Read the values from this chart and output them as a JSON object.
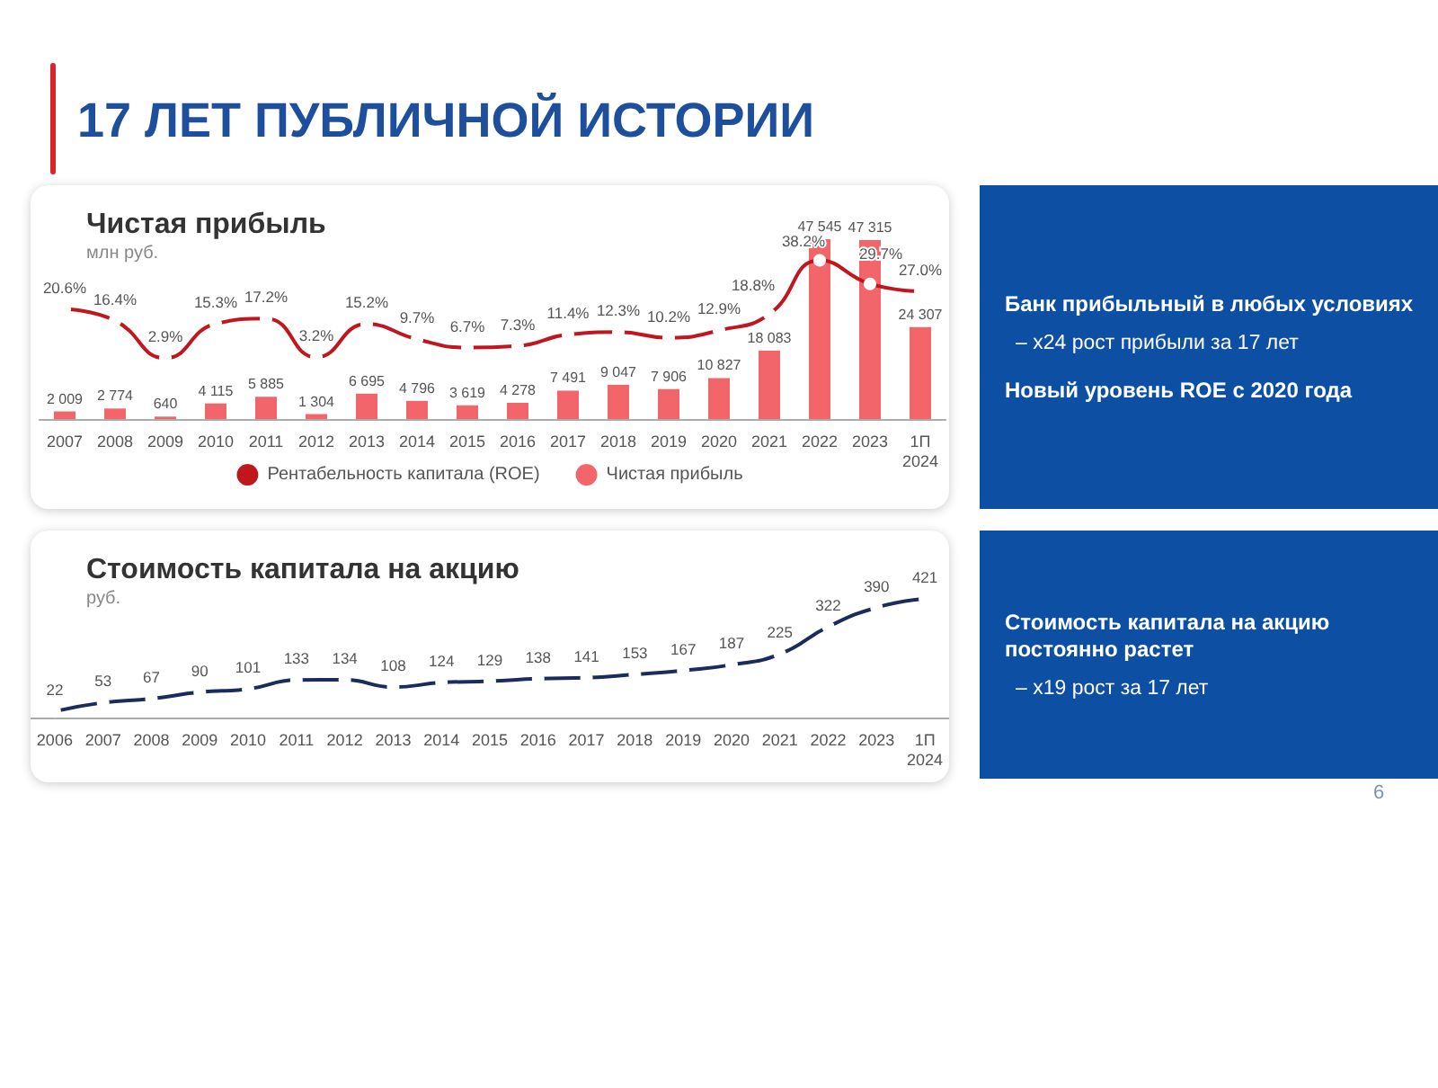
{
  "chart_data": [
    {
      "type": "other",
      "title": "17 ЛЕТ ПУБЛИЧНОЙ ИСТОРИИ",
      "annotations": [
        "6"
      ]
    },
    {
      "type": "bar",
      "title": "Чистая прибыль",
      "subtitle": "млн руб.",
      "categories": [
        "2007",
        "2008",
        "2009",
        "2010",
        "2011",
        "2012",
        "2013",
        "2014",
        "2015",
        "2016",
        "2017",
        "2018",
        "2019",
        "2020",
        "2021",
        "2022",
        "2023",
        "1П\n2024"
      ],
      "series": [
        {
          "name": "Рентабельность капитала (ROE)",
          "type": "line",
          "axis": "y2",
          "color": "#c0161e",
          "values": [
            20.6,
            16.4,
            2.9,
            15.3,
            17.2,
            3.2,
            15.2,
            9.7,
            6.7,
            7.3,
            11.4,
            12.3,
            10.2,
            12.9,
            18.8,
            38.2,
            29.7,
            27.0
          ],
          "value_labels": [
            "20.6%",
            "16.4%",
            "2.9%",
            "15.3%",
            "17.2%",
            "3.2%",
            "15.2%",
            "9.7%",
            "6.7%",
            "7.3%",
            "11.4%",
            "12.3%",
            "10.2%",
            "12.9%",
            "18.8%",
            "38.2%",
            "29.7%",
            "27.0%"
          ]
        },
        {
          "name": "Чистая прибыль",
          "type": "bar",
          "color": "#f2666b",
          "values": [
            2009,
            2774,
            640,
            4115,
            5885,
            1304,
            6695,
            4796,
            3619,
            4278,
            7491,
            9047,
            7906,
            10827,
            18083,
            47545,
            47315,
            24307
          ],
          "value_labels": [
            "2 009",
            "2 774",
            "640",
            "4 115",
            "5 885",
            "1 304",
            "6 695",
            "4 796",
            "3 619",
            "4 278",
            "7 491",
            "9 047",
            "7 906",
            "10 827",
            "18 083",
            "47 545",
            "47 315",
            "24 307"
          ]
        }
      ],
      "marker": "circle",
      "legend": "bottom",
      "tick_labels": "x"
    },
    {
      "type": "other",
      "title": "Банк прибыльный в любых условиях",
      "subtitle": "– x24 рост прибыли за 17 лет",
      "annotations": [
        "Новый уровень ROE с 2020 года"
      ]
    },
    {
      "type": "line",
      "title": "Стоимость капитала на акцию",
      "subtitle": "руб.",
      "categories": [
        "2006",
        "2007",
        "2008",
        "2009",
        "2010",
        "2011",
        "2012",
        "2013",
        "2014",
        "2015",
        "2016",
        "2017",
        "2018",
        "2019",
        "2020",
        "2021",
        "2022",
        "2023",
        "1П\n2024"
      ],
      "values": [
        22,
        53,
        67,
        90,
        101,
        133,
        134,
        108,
        124,
        129,
        138,
        141,
        153,
        167,
        187,
        225,
        322,
        390,
        421
      ],
      "color": "#1b2b5c",
      "data_labels": true,
      "marker": "circle",
      "tick_labels": "x"
    },
    {
      "type": "other",
      "title": "Стоимость капитала на акцию постоянно растет",
      "subtitle": "– x19 рост за 17 лет"
    }
  ]
}
